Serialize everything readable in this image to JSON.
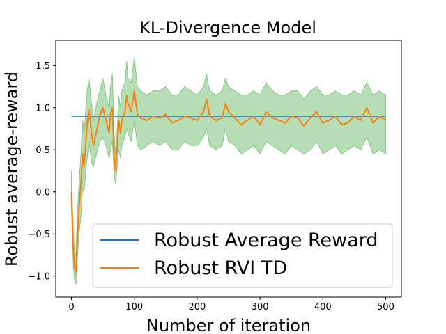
{
  "chart_data": {
    "type": "line",
    "title": "KL-Divergence Model",
    "xlabel": "Number of iteration",
    "ylabel": "Robust average-reward",
    "xlim": [
      -25,
      525
    ],
    "ylim": [
      -1.25,
      1.8
    ],
    "xticks": [
      0,
      100,
      200,
      300,
      400,
      500
    ],
    "yticks": [
      -1.0,
      -0.5,
      0.0,
      0.5,
      1.0,
      1.5
    ],
    "xtick_labels": [
      "0",
      "100",
      "200",
      "300",
      "400",
      "500"
    ],
    "ytick_labels": [
      "−1.0",
      "−0.5",
      "0.0",
      "0.5",
      "1.0",
      "1.5"
    ],
    "legend_position": "lower-right",
    "series": [
      {
        "name": "Robust Average Reward",
        "color": "#1f77b4",
        "x": [
          0,
          500
        ],
        "y": [
          0.9,
          0.9
        ]
      },
      {
        "name": "Robust RVI TD",
        "color": "#ff7f0e",
        "band_color": "#2ca02c",
        "x": [
          0,
          3,
          5,
          7,
          9,
          12,
          15,
          18,
          20,
          25,
          28,
          32,
          35,
          40,
          45,
          50,
          55,
          60,
          62,
          65,
          68,
          70,
          73,
          75,
          78,
          80,
          85,
          88,
          90,
          95,
          100,
          105,
          110,
          120,
          130,
          140,
          150,
          160,
          170,
          180,
          190,
          200,
          210,
          215,
          220,
          230,
          240,
          245,
          250,
          260,
          270,
          280,
          290,
          300,
          310,
          320,
          330,
          340,
          350,
          360,
          370,
          380,
          390,
          400,
          410,
          420,
          430,
          440,
          450,
          460,
          470,
          480,
          490,
          500
        ],
        "y": [
          0.0,
          -0.7,
          -0.9,
          -0.95,
          -0.6,
          -0.2,
          0.1,
          0.45,
          0.3,
          0.8,
          0.98,
          0.7,
          0.55,
          0.72,
          0.9,
          1.0,
          0.85,
          0.7,
          0.92,
          1.0,
          0.4,
          0.25,
          0.55,
          0.85,
          0.7,
          0.85,
          0.95,
          1.15,
          1.05,
          0.95,
          1.2,
          0.92,
          0.88,
          0.85,
          0.9,
          0.88,
          0.92,
          0.82,
          0.85,
          0.9,
          0.88,
          0.85,
          0.95,
          1.1,
          0.9,
          0.85,
          0.88,
          1.05,
          0.95,
          0.88,
          0.8,
          0.85,
          0.9,
          0.8,
          0.95,
          0.88,
          0.85,
          0.82,
          0.9,
          0.88,
          0.78,
          0.88,
          0.95,
          0.82,
          0.85,
          0.9,
          0.8,
          0.82,
          0.9,
          0.85,
          1.0,
          0.82,
          0.9,
          0.85
        ],
        "band_low": [
          -0.2,
          -0.9,
          -1.05,
          -1.1,
          -0.85,
          -0.5,
          -0.3,
          0.05,
          0.0,
          0.4,
          0.6,
          0.35,
          0.3,
          0.45,
          0.6,
          0.65,
          0.55,
          0.4,
          0.5,
          0.6,
          0.2,
          0.1,
          0.3,
          0.5,
          0.4,
          0.55,
          0.65,
          0.75,
          0.7,
          0.6,
          0.85,
          0.55,
          0.5,
          0.55,
          0.6,
          0.55,
          0.6,
          0.5,
          0.5,
          0.6,
          0.55,
          0.55,
          0.65,
          0.75,
          0.55,
          0.5,
          0.55,
          0.75,
          0.6,
          0.55,
          0.45,
          0.5,
          0.55,
          0.45,
          0.6,
          0.55,
          0.5,
          0.45,
          0.55,
          0.5,
          0.45,
          0.5,
          0.6,
          0.45,
          0.5,
          0.55,
          0.45,
          0.5,
          0.55,
          0.5,
          0.65,
          0.45,
          0.5,
          0.45
        ],
        "band_high": [
          0.25,
          -0.5,
          -0.7,
          -0.75,
          -0.3,
          0.1,
          0.45,
          0.85,
          0.7,
          1.2,
          1.35,
          1.05,
          0.85,
          1.05,
          1.2,
          1.35,
          1.15,
          1.0,
          1.25,
          1.4,
          0.7,
          0.45,
          0.8,
          1.15,
          1.0,
          1.2,
          1.3,
          1.55,
          1.35,
          1.3,
          1.6,
          1.25,
          1.2,
          1.15,
          1.2,
          1.2,
          1.25,
          1.15,
          1.15,
          1.25,
          1.2,
          1.15,
          1.25,
          1.4,
          1.2,
          1.15,
          1.2,
          1.35,
          1.25,
          1.2,
          1.15,
          1.15,
          1.2,
          1.15,
          1.3,
          1.2,
          1.15,
          1.15,
          1.2,
          1.2,
          1.1,
          1.2,
          1.25,
          1.15,
          1.15,
          1.2,
          1.15,
          1.15,
          1.2,
          1.15,
          1.3,
          1.15,
          1.2,
          1.15
        ]
      }
    ]
  }
}
